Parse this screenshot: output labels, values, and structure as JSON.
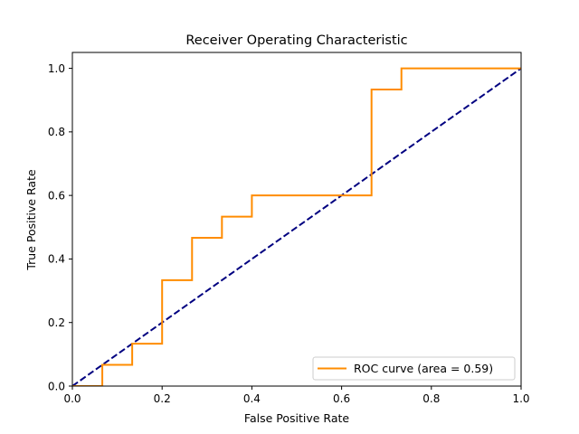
{
  "chart_data": {
    "type": "line",
    "title": "Receiver Operating Characteristic",
    "xlabel": "False Positive Rate",
    "ylabel": "True Positive Rate",
    "xlim": [
      0,
      1
    ],
    "ylim": [
      0,
      1.05
    ],
    "xticks": [
      "0.0",
      "0.2",
      "0.4",
      "0.6",
      "0.8",
      "1.0"
    ],
    "yticks": [
      "0.0",
      "0.2",
      "0.4",
      "0.6",
      "0.8",
      "1.0"
    ],
    "grid": false,
    "legend_position": "lower-right",
    "series": [
      {
        "name": "ROC curve (area = 0.59)",
        "color": "#ff8c00",
        "style": "solid",
        "step": true,
        "x": [
          0.0,
          0.0,
          0.0667,
          0.0667,
          0.1333,
          0.1333,
          0.2,
          0.2,
          0.2667,
          0.2667,
          0.3333,
          0.3333,
          0.4,
          0.4,
          0.6667,
          0.6667,
          0.7333,
          0.7333,
          1.0
        ],
        "y": [
          0.0,
          0.0,
          0.0,
          0.0667,
          0.0667,
          0.1333,
          0.1333,
          0.3333,
          0.3333,
          0.4667,
          0.4667,
          0.5333,
          0.5333,
          0.6,
          0.6,
          0.9333,
          0.9333,
          1.0,
          1.0
        ]
      },
      {
        "color": "#000080",
        "style": "dashed",
        "x": [
          0,
          1
        ],
        "y": [
          0,
          1
        ]
      }
    ]
  }
}
